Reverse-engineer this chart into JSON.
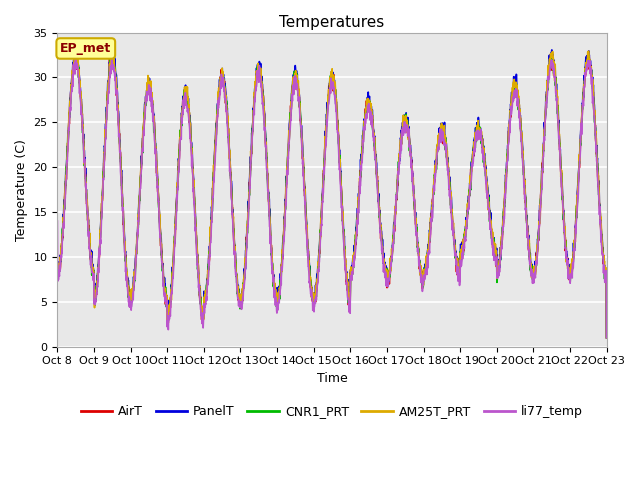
{
  "title": "Temperatures",
  "xlabel": "Time",
  "ylabel": "Temperature (C)",
  "ylim": [
    0,
    35
  ],
  "series_names": [
    "AirT",
    "PanelT",
    "CNR1_PRT",
    "AM25T_PRT",
    "li77_temp"
  ],
  "series_colors": [
    "#dd0000",
    "#0000dd",
    "#00bb00",
    "#ddaa00",
    "#bb55cc"
  ],
  "annotation_text": "EP_met",
  "annotation_bg": "#ffff99",
  "annotation_border": "#ccaa00",
  "background_color": "#ffffff",
  "plot_bg": "#e8e8e8",
  "grid_color": "#ffffff",
  "tick_labels": [
    "Oct 8",
    "Oct 9",
    "Oct 10",
    "Oct 11",
    "Oct 12",
    "Oct 13",
    "Oct 14",
    "Oct 15",
    "Oct 16",
    "Oct 17",
    "Oct 18",
    "Oct 19",
    "Oct 20",
    "Oct 21",
    "Oct 22",
    "Oct 23"
  ],
  "num_days": 15,
  "points_per_day": 144,
  "title_fontsize": 11,
  "label_fontsize": 9,
  "tick_fontsize": 8,
  "legend_fontsize": 9,
  "linewidth": 1.2,
  "figwidth": 6.4,
  "figheight": 4.8,
  "dpi": 100
}
